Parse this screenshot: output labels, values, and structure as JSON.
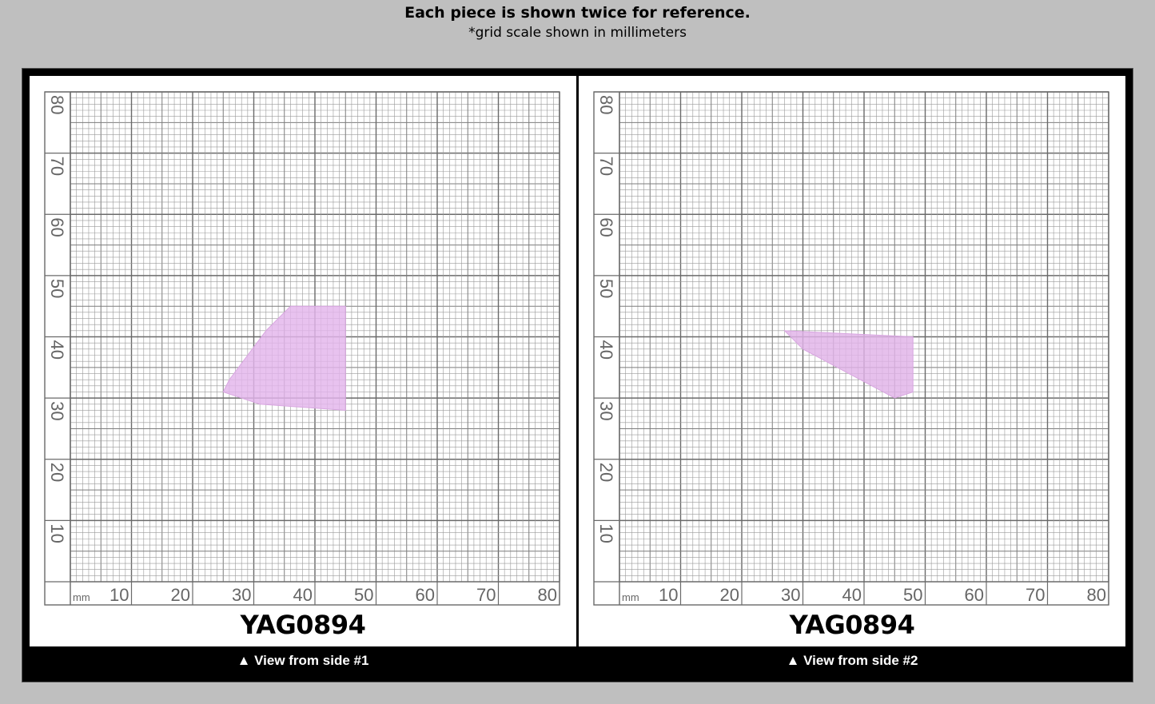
{
  "header": {
    "title": "Each piece is shown twice for reference.",
    "subtitle": "*grid scale shown in millimeters"
  },
  "grid": {
    "unit_label": "mm",
    "x_ticks": [
      "10",
      "20",
      "30",
      "40",
      "50",
      "60",
      "70",
      "80"
    ],
    "y_ticks": [
      "10",
      "20",
      "30",
      "40",
      "50",
      "60",
      "70",
      "80"
    ]
  },
  "panels": [
    {
      "sku": "YAG0894",
      "caption": "▲ View from side #1",
      "piece_color": "#e3b4ec",
      "piece_shape_mm": [
        [
          26,
          33
        ],
        [
          32,
          41
        ],
        [
          36,
          45
        ],
        [
          45,
          45
        ],
        [
          45,
          28
        ],
        [
          31,
          29
        ],
        [
          25,
          31
        ]
      ]
    },
    {
      "sku": "YAG0894",
      "caption": "▲ View from side #2",
      "piece_color": "#e0b2e8",
      "piece_shape_mm": [
        [
          27,
          41
        ],
        [
          48,
          40
        ],
        [
          48,
          31
        ],
        [
          45,
          30
        ],
        [
          30,
          38
        ]
      ]
    }
  ],
  "colors": {
    "background": "#bfbfbf",
    "frame": "#000000",
    "panel": "#ffffff",
    "grid_major": "#6a6a6a",
    "grid_minor": "#9a9a9a"
  }
}
